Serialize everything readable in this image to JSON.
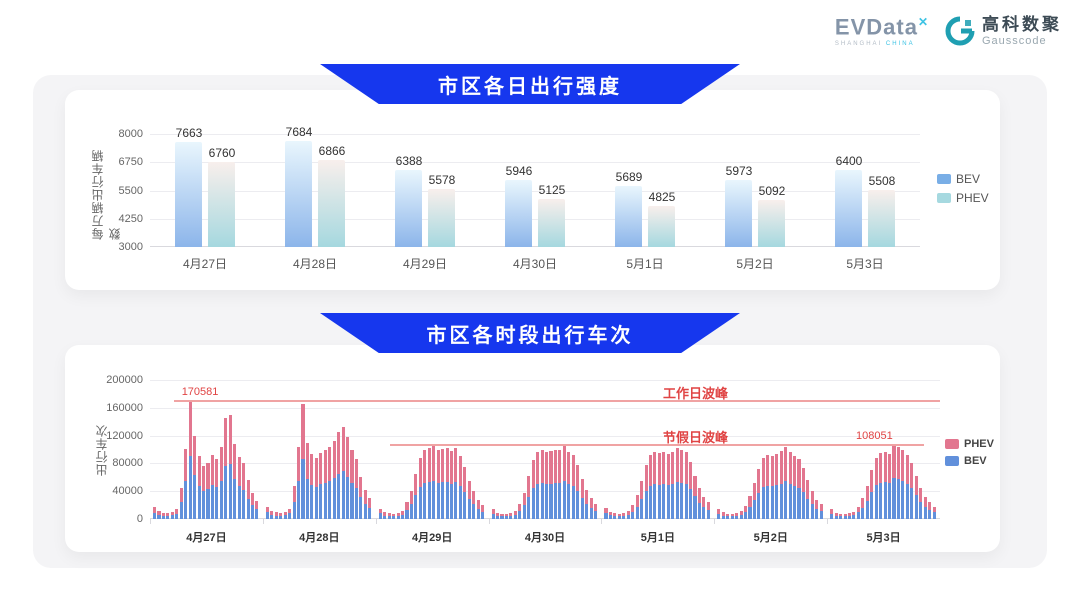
{
  "header": {
    "evdata": {
      "text": "EVData",
      "sup": "✕",
      "sub_left": "SHANGHAI",
      "sub_right": "CHINA",
      "accent": "#3ec3e4"
    },
    "gausscode": {
      "cn": "高科数聚",
      "en": "Gausscode",
      "mark_color": "#1f9fb2"
    }
  },
  "banner_color": "#1637ee",
  "chart_data": [
    {
      "type": "bar",
      "title": "市区各日出行强度",
      "ylabel": "每万辆出行车辆数",
      "categories": [
        "4月27日",
        "4月28日",
        "4月29日",
        "4月30日",
        "5月1日",
        "5月2日",
        "5月3日"
      ],
      "yticks": [
        3000,
        4250,
        5500,
        6750,
        8000
      ],
      "ylim": [
        3000,
        8000
      ],
      "grid": true,
      "legend_position": "right",
      "series": [
        {
          "name": "BEV",
          "values": [
            7663,
            7684,
            6388,
            5946,
            5689,
            5973,
            6400
          ],
          "color": "#79aee6",
          "color_top": "#e9f6fd",
          "color_bottom": "#8cb5ea"
        },
        {
          "name": "PHEV",
          "values": [
            6760,
            6866,
            5578,
            5125,
            4825,
            5092,
            5508
          ],
          "color": "#a6d9e0",
          "color_top": "#f8efec",
          "color_bottom": "#a5d8df"
        }
      ]
    },
    {
      "type": "bar",
      "stacked": true,
      "title": "市区各时段出行车次",
      "ylabel": "出行车次",
      "yticks": [
        0,
        40000,
        80000,
        120000,
        160000,
        200000
      ],
      "ylim": [
        0,
        200000
      ],
      "grid": true,
      "legend_position": "right",
      "legend_order": [
        "PHEV",
        "BEV"
      ],
      "colors": {
        "BEV": "#6190db",
        "PHEV": "#e2768f"
      },
      "annotations": [
        {
          "name": "workday-peak",
          "label": "工作日波峰",
          "value": 170581,
          "value_label": "170581",
          "span_frac": [
            0.03,
            1.0
          ]
        },
        {
          "name": "holiday-peak",
          "label": "节假日波峰",
          "value": 108051,
          "value_label": "108051",
          "span_frac": [
            0.304,
            0.98
          ]
        }
      ],
      "days": [
        {
          "label": "4月27日",
          "bev": [
            9000,
            6000,
            5000,
            4400,
            5200,
            7500,
            24000,
            54000,
            90600,
            63000,
            47500,
            40000,
            43000,
            48500,
            46000,
            55000,
            77000,
            79000,
            57000,
            47000,
            42000,
            29500,
            20000,
            14000
          ],
          "phev": [
            8000,
            5000,
            4000,
            3600,
            4300,
            6500,
            21000,
            47000,
            79981,
            56000,
            42500,
            36000,
            38000,
            43500,
            41000,
            49000,
            68000,
            70000,
            51000,
            42000,
            38000,
            26500,
            18000,
            12000
          ]
        },
        {
          "label": "4月28日",
          "bev": [
            9500,
            6300,
            5000,
            4500,
            5300,
            8000,
            25000,
            54000,
            86000,
            58000,
            49000,
            46000,
            50000,
            52500,
            54000,
            59000,
            65000,
            69000,
            61000,
            52000,
            45000,
            31500,
            22000,
            16000
          ],
          "phev": [
            8500,
            5700,
            4500,
            4000,
            4700,
            7000,
            23000,
            49000,
            79000,
            52000,
            44000,
            42000,
            45000,
            47500,
            49000,
            53000,
            60000,
            64000,
            57000,
            48000,
            41000,
            28500,
            20000,
            14000
          ]
        },
        {
          "label": "4月29日",
          "bev": [
            8000,
            5000,
            4200,
            3700,
            4500,
            6300,
            12500,
            21000,
            34000,
            46000,
            52000,
            53000,
            55000,
            52000,
            53000,
            53000,
            51000,
            53000,
            47000,
            39000,
            29000,
            21000,
            15000,
            10500
          ],
          "phev": [
            7000,
            4500,
            3800,
            3300,
            4000,
            5700,
            11500,
            19000,
            31000,
            42000,
            47000,
            49000,
            51000,
            48000,
            48000,
            49000,
            47000,
            49000,
            43000,
            36000,
            26000,
            19000,
            13000,
            9500
          ]
        },
        {
          "label": "4月30日",
          "bev": [
            7400,
            4800,
            4000,
            3700,
            4200,
            5800,
            11500,
            20000,
            32000,
            44000,
            50000,
            52000,
            50000,
            51000,
            52000,
            51500,
            55000,
            50500,
            48000,
            41000,
            30000,
            22000,
            16000,
            11500
          ],
          "phev": [
            6600,
            4200,
            3500,
            3300,
            3800,
            5200,
            10500,
            18000,
            30000,
            41000,
            47000,
            48000,
            46000,
            47000,
            48000,
            47500,
            50000,
            46500,
            44000,
            37000,
            28000,
            20000,
            14000,
            10500
          ]
        },
        {
          "label": "5月1日",
          "bev": [
            8400,
            5300,
            4200,
            3700,
            4200,
            5800,
            10500,
            18000,
            29000,
            41000,
            48000,
            50000,
            49500,
            50500,
            48500,
            50000,
            53000,
            51500,
            50000,
            43000,
            32500,
            23500,
            17000,
            12500
          ],
          "phev": [
            7600,
            4700,
            3800,
            3300,
            3800,
            5200,
            9500,
            17000,
            26000,
            37000,
            44000,
            46000,
            45500,
            46500,
            44500,
            46000,
            49000,
            47500,
            46000,
            39000,
            29500,
            21500,
            15000,
            11500
          ]
        },
        {
          "label": "5月2日",
          "bev": [
            7800,
            5000,
            3900,
            3700,
            4200,
            5800,
            10000,
            17000,
            27000,
            37500,
            46000,
            48000,
            47000,
            49000,
            51000,
            54000,
            50000,
            47500,
            45000,
            38500,
            29000,
            21000,
            14500,
            11000
          ],
          "phev": [
            7200,
            4500,
            3600,
            3300,
            3800,
            5200,
            9000,
            16000,
            25000,
            34500,
            42000,
            44000,
            43000,
            45000,
            47000,
            49000,
            46000,
            43500,
            41000,
            35500,
            27000,
            19000,
            13500,
            10000
          ]
        },
        {
          "label": "5月3日",
          "bev": [
            7700,
            5000,
            4100,
            3900,
            4400,
            5500,
            10000,
            16500,
            26500,
            38500,
            48500,
            52000,
            53500,
            52000,
            59500,
            57000,
            54500,
            50500,
            44000,
            34000,
            25000,
            17500,
            13000,
            10000
          ],
          "phev": [
            6300,
            4000,
            3400,
            3100,
            3600,
            4500,
            8000,
            13500,
            21500,
            31500,
            39500,
            43000,
            43500,
            42000,
            48551,
            46000,
            44500,
            41500,
            36000,
            28000,
            20000,
            14500,
            11000,
            8000
          ]
        }
      ]
    }
  ]
}
